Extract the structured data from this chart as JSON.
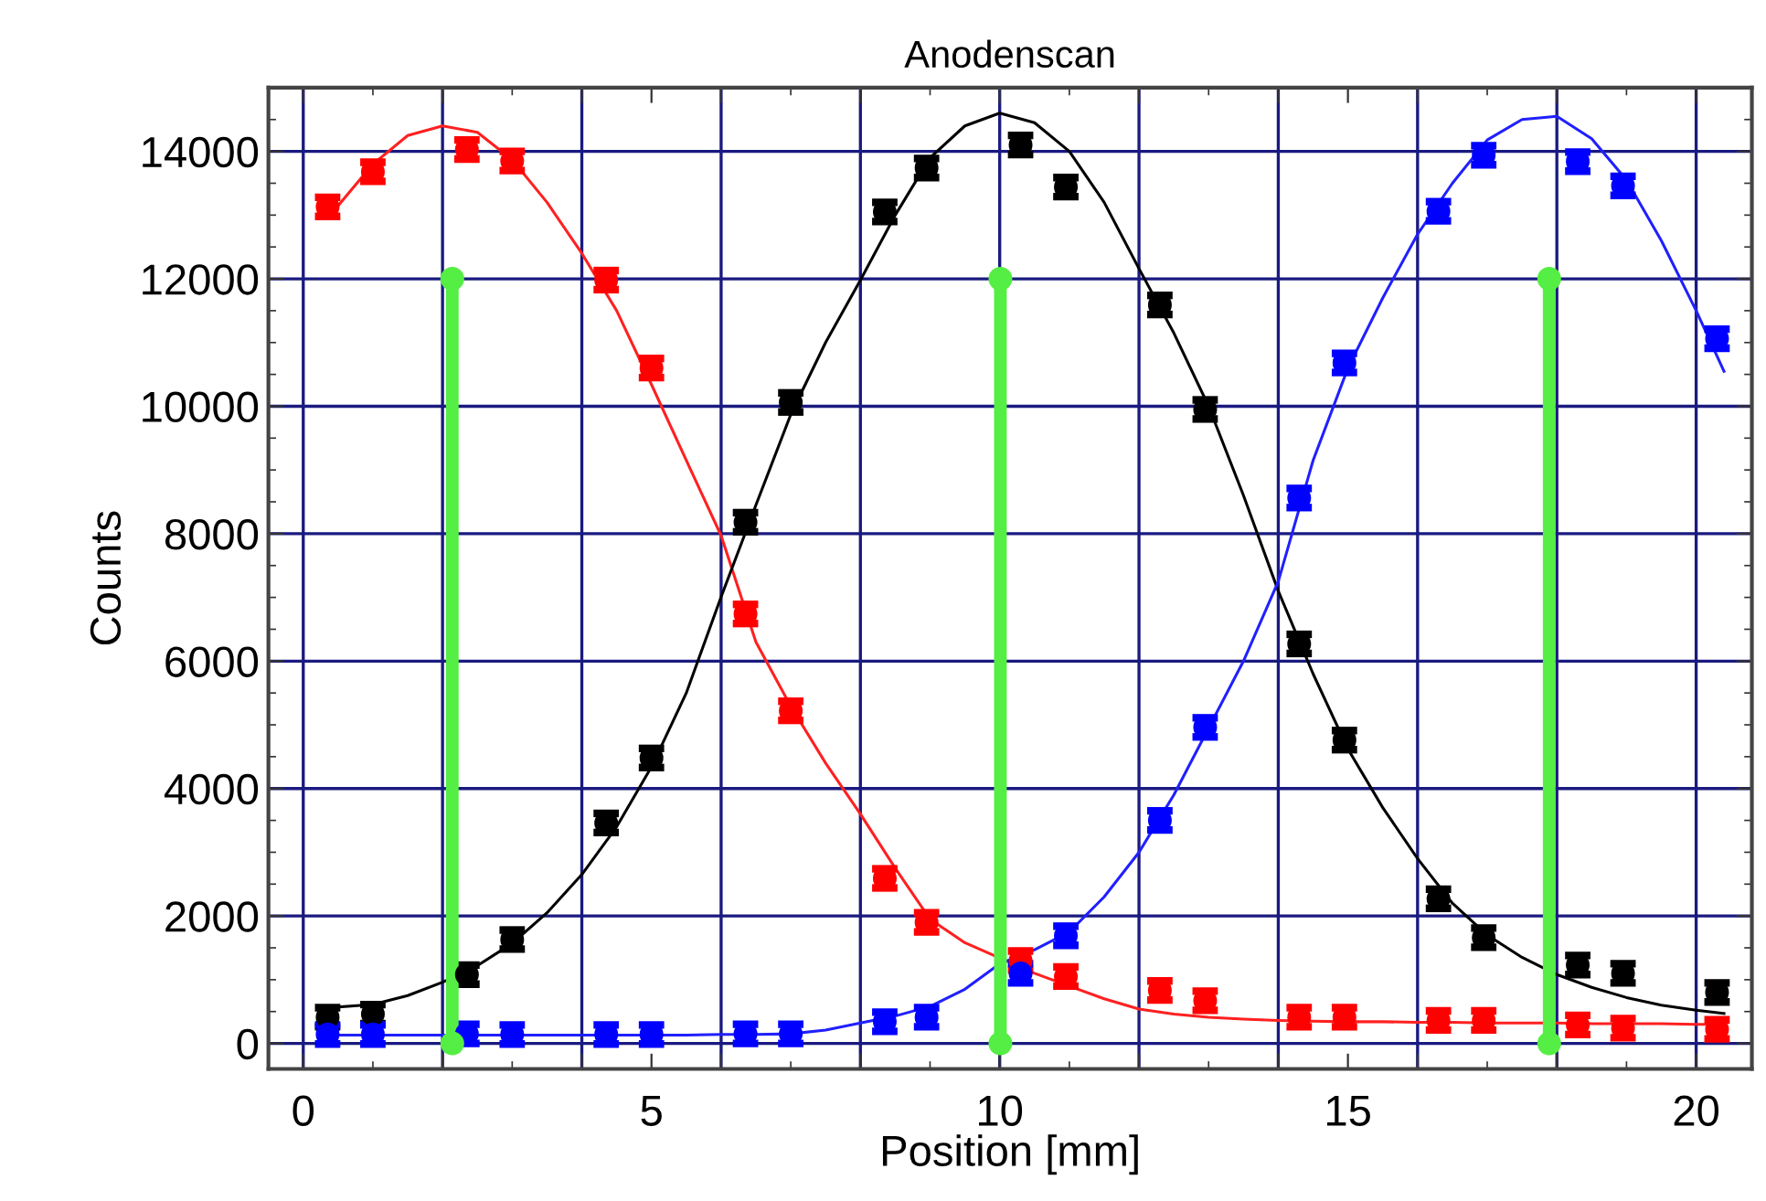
{
  "chart_data": {
    "type": "scatter",
    "title": "Anodenscan",
    "xlabel": "Position [mm]",
    "ylabel": "Counts",
    "x": [
      0.35,
      1.0,
      2.35,
      3.0,
      4.35,
      5.0,
      6.35,
      7.0,
      8.35,
      8.95,
      10.3,
      10.95,
      12.3,
      12.95,
      14.3,
      14.95,
      16.3,
      16.95,
      18.3,
      18.95,
      20.3
    ],
    "xlim": [
      -0.5,
      20.8
    ],
    "xticks": [
      0,
      {
        "value": 2,
        "label": null
      },
      {
        "value": 4,
        "label": null
      },
      5,
      {
        "value": 6,
        "label": null
      },
      {
        "value": 8,
        "label": null
      },
      10,
      {
        "value": 12,
        "label": null
      },
      {
        "value": 14,
        "label": null
      },
      15,
      {
        "value": 16,
        "label": null
      },
      {
        "value": 18,
        "label": null
      },
      20
    ],
    "ylim": [
      -400,
      15000
    ],
    "yticks": [
      0,
      2000,
      4000,
      6000,
      8000,
      10000,
      12000,
      14000
    ],
    "grid": true,
    "series": [
      {
        "marker": "circle",
        "color": "#ff0000",
        "values": [
          13130,
          13680,
          14030,
          13850,
          11980,
          10600,
          6740,
          5220,
          2590,
          1900,
          1300,
          1050,
          830,
          670,
          410,
          410,
          360,
          360,
          290,
          240,
          220
        ],
        "errors": [
          150,
          150,
          150,
          150,
          150,
          150,
          150,
          150,
          150,
          150,
          150,
          150,
          150,
          150,
          150,
          150,
          150,
          150,
          150,
          150,
          150
        ]
      },
      {
        "marker": "circle",
        "color": "#000000",
        "values": [
          410,
          460,
          1080,
          1630,
          3460,
          4480,
          8180,
          10060,
          13050,
          13740,
          14100,
          13440,
          11590,
          9950,
          6270,
          4760,
          2270,
          1660,
          1230,
          1100,
          800
        ],
        "errors": [
          150,
          150,
          150,
          150,
          150,
          150,
          150,
          150,
          150,
          150,
          150,
          150,
          150,
          150,
          150,
          150,
          150,
          150,
          150,
          150,
          150
        ]
      },
      {
        "marker": "circle",
        "color": "#0000ff",
        "values": [
          140,
          140,
          150,
          140,
          140,
          140,
          150,
          150,
          340,
          410,
          1100,
          1690,
          3500,
          4960,
          8560,
          10680,
          13060,
          13940,
          13840,
          13460,
          11060
        ],
        "errors": [
          150,
          150,
          150,
          150,
          150,
          150,
          150,
          150,
          150,
          150,
          150,
          150,
          150,
          150,
          150,
          150,
          150,
          150,
          150,
          150,
          150
        ]
      },
      {
        "type": "line",
        "color": "#ff2020",
        "x": [
          0.35,
          1.0,
          1.5,
          2.0,
          2.5,
          3.0,
          3.5,
          4.0,
          4.5,
          5.0,
          5.5,
          6.0,
          6.5,
          7.0,
          7.5,
          8.0,
          8.5,
          9.0,
          9.5,
          10.0,
          10.5,
          11.0,
          11.5,
          12.0,
          12.5,
          13.0,
          13.5,
          14.0,
          14.5,
          15.0,
          15.5,
          16.0,
          16.5,
          17.0,
          17.5,
          18.0,
          18.5,
          19.0,
          19.5,
          20.0,
          20.4
        ],
        "values": [
          12950,
          13800,
          14250,
          14400,
          14300,
          13870,
          13200,
          12400,
          11500,
          10340,
          9150,
          7970,
          6300,
          5290,
          4400,
          3600,
          2750,
          1950,
          1580,
          1340,
          1100,
          900,
          700,
          540,
          460,
          410,
          380,
          360,
          350,
          340,
          340,
          330,
          330,
          320,
          320,
          320,
          310,
          310,
          310,
          300,
          300
        ]
      },
      {
        "type": "line",
        "color": "#000000",
        "x": [
          0.35,
          1.0,
          1.5,
          2.0,
          2.5,
          3.0,
          3.5,
          4.0,
          4.5,
          5.0,
          5.5,
          6.0,
          6.5,
          7.0,
          7.5,
          8.0,
          8.5,
          9.0,
          9.5,
          10.0,
          10.5,
          11.0,
          11.5,
          12.0,
          12.5,
          13.0,
          13.5,
          14.0,
          14.5,
          15.0,
          15.5,
          16.0,
          16.5,
          17.0,
          17.5,
          18.0,
          18.5,
          19.0,
          19.5,
          20.0,
          20.4
        ],
        "values": [
          560,
          610,
          750,
          960,
          1220,
          1570,
          2050,
          2650,
          3400,
          4340,
          5500,
          7010,
          8450,
          9870,
          11000,
          11980,
          13000,
          13900,
          14400,
          14600,
          14450,
          14000,
          13200,
          12160,
          11150,
          10000,
          8600,
          7100,
          5800,
          4620,
          3700,
          2900,
          2200,
          1700,
          1350,
          1080,
          880,
          720,
          600,
          520,
          470
        ]
      },
      {
        "type": "line",
        "color": "#2020ff",
        "x": [
          0.35,
          1.0,
          1.5,
          2.0,
          2.5,
          3.0,
          3.5,
          4.0,
          4.5,
          5.0,
          5.5,
          6.0,
          6.5,
          7.0,
          7.5,
          8.0,
          8.5,
          9.0,
          9.5,
          10.0,
          10.5,
          11.0,
          11.5,
          12.0,
          12.5,
          13.0,
          13.5,
          14.0,
          14.5,
          15.0,
          15.5,
          16.0,
          16.5,
          17.0,
          17.5,
          18.0,
          18.5,
          19.0,
          19.5,
          20.0,
          20.4
        ],
        "values": [
          130,
          130,
          130,
          130,
          130,
          130,
          130,
          130,
          130,
          130,
          130,
          140,
          140,
          150,
          210,
          320,
          430,
          580,
          850,
          1250,
          1470,
          1750,
          2300,
          3000,
          3900,
          4950,
          6000,
          7250,
          9150,
          10600,
          11700,
          12700,
          13500,
          14180,
          14500,
          14550,
          14200,
          13550,
          12600,
          11500,
          10550
        ]
      },
      {
        "type": "lollipop",
        "color": "#55ee44",
        "x": [
          2.14,
          10.01,
          17.89
        ],
        "values": [
          12000,
          12000,
          12000
        ]
      },
      {
        "type": "scatter",
        "marker": "circle",
        "color": "#55ee44",
        "x": [
          2.14,
          10.01,
          17.89
        ],
        "values": [
          0,
          0,
          0
        ]
      }
    ]
  }
}
